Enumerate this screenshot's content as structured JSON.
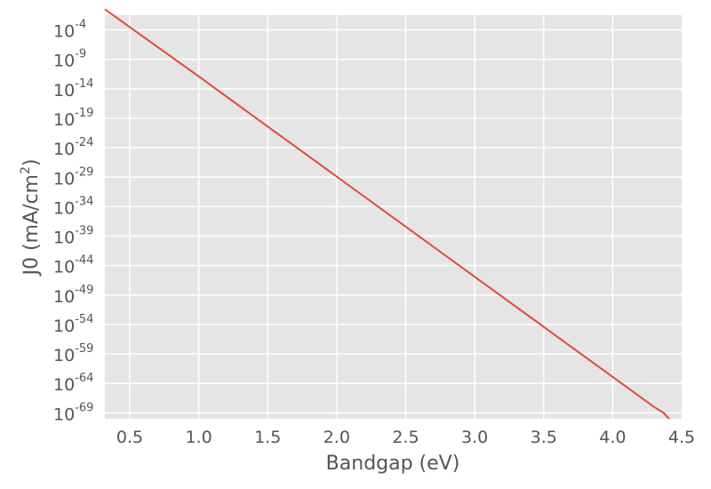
{
  "chart_data": {
    "type": "line",
    "title": "",
    "xlabel": "Bandgap (eV)",
    "ylabel": {
      "prefix": "J0 (mA/cm",
      "superscript": "2",
      "suffix": ")"
    },
    "xlim": [
      0.32,
      4.5
    ],
    "ylim_log10": [
      -70,
      -1.5
    ],
    "yscale": "log",
    "grid": true,
    "background_color": "#e5e5e5",
    "grid_color": "#ffffff",
    "x_ticks": [
      {
        "value": 0.5,
        "label": "0.5"
      },
      {
        "value": 1.0,
        "label": "1.0"
      },
      {
        "value": 1.5,
        "label": "1.5"
      },
      {
        "value": 2.0,
        "label": "2.0"
      },
      {
        "value": 2.5,
        "label": "2.5"
      },
      {
        "value": 3.0,
        "label": "3.0"
      },
      {
        "value": 3.5,
        "label": "3.5"
      },
      {
        "value": 4.0,
        "label": "4.0"
      },
      {
        "value": 4.5,
        "label": "4.5"
      }
    ],
    "y_ticks": [
      {
        "exp": -4,
        "base": "10",
        "sup": "-4"
      },
      {
        "exp": -9,
        "base": "10",
        "sup": "-9"
      },
      {
        "exp": -14,
        "base": "10",
        "sup": "-14"
      },
      {
        "exp": -19,
        "base": "10",
        "sup": "-19"
      },
      {
        "exp": -24,
        "base": "10",
        "sup": "-24"
      },
      {
        "exp": -29,
        "base": "10",
        "sup": "-29"
      },
      {
        "exp": -34,
        "base": "10",
        "sup": "-34"
      },
      {
        "exp": -39,
        "base": "10",
        "sup": "-39"
      },
      {
        "exp": -44,
        "base": "10",
        "sup": "-44"
      },
      {
        "exp": -49,
        "base": "10",
        "sup": "-49"
      },
      {
        "exp": -54,
        "base": "10",
        "sup": "-54"
      },
      {
        "exp": -59,
        "base": "10",
        "sup": "-59"
      },
      {
        "exp": -64,
        "base": "10",
        "sup": "-64"
      },
      {
        "exp": -69,
        "base": "10",
        "sup": "-69"
      }
    ],
    "series": [
      {
        "color": "#e24a33",
        "points": [
          {
            "x": 0.32,
            "log10_y": -0.5
          },
          {
            "x": 1.0,
            "log10_y": -11.9
          },
          {
            "x": 1.5,
            "log10_y": -20.4
          },
          {
            "x": 2.0,
            "log10_y": -28.9
          },
          {
            "x": 2.5,
            "log10_y": -37.4
          },
          {
            "x": 3.0,
            "log10_y": -45.9
          },
          {
            "x": 3.5,
            "log10_y": -54.4
          },
          {
            "x": 4.0,
            "log10_y": -62.9
          },
          {
            "x": 4.3,
            "log10_y": -68.0
          },
          {
            "x": 4.37,
            "log10_y": -69.0
          },
          {
            "x": 4.4,
            "log10_y": -69.8
          },
          {
            "x": 4.41,
            "log10_y": -70.0
          }
        ]
      }
    ]
  }
}
